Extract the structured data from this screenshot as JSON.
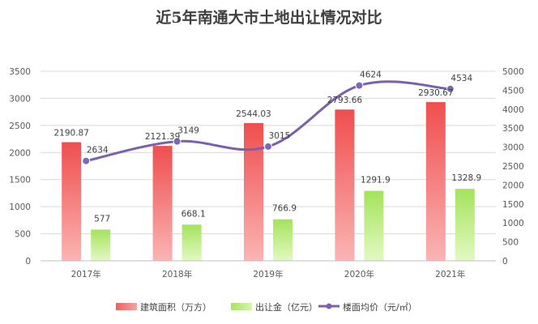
{
  "chart_data": {
    "type": "bar",
    "title": "近5年南通大市土地出让情况对比",
    "categories": [
      "2017年",
      "2018年",
      "2019年",
      "2020年",
      "2021年"
    ],
    "series": [
      {
        "name": "建筑面积（万方）",
        "type": "bar",
        "axis": "left",
        "color": "#f25f5f",
        "values": [
          2190.87,
          2121.39,
          2544.03,
          2793.66,
          2930.67
        ]
      },
      {
        "name": "出让金（亿元）",
        "type": "bar",
        "axis": "left",
        "color": "#b9ec7a",
        "values": [
          577,
          668.1,
          766.9,
          1291.9,
          1328.9
        ]
      },
      {
        "name": "楼面均价（元/㎡）",
        "type": "line",
        "axis": "right",
        "color": "#7b5fb0",
        "values": [
          2634,
          3149,
          3015,
          4624,
          4534
        ]
      }
    ],
    "y_left": {
      "range": [
        0,
        3500
      ],
      "ticks": [
        "0",
        "500",
        "1000",
        "1500",
        "2000",
        "2500",
        "3000",
        "3500"
      ]
    },
    "y_right": {
      "range": [
        0,
        5000
      ],
      "ticks": [
        "0",
        "500",
        "1000",
        "1500",
        "2000",
        "2500",
        "3000",
        "3500",
        "4000",
        "4500",
        "5000"
      ]
    },
    "grid": true,
    "line_smooth": true,
    "legend_position": "bottom"
  }
}
